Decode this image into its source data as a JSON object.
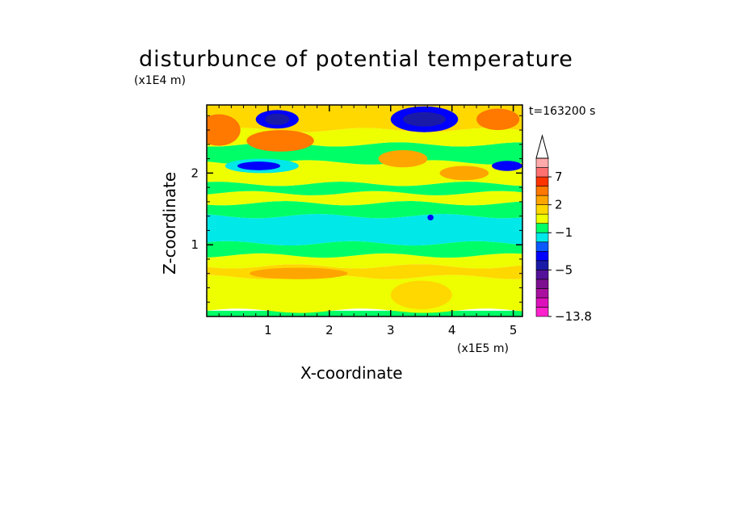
{
  "chart_data": {
    "type": "heatmap",
    "title": "disturbunce of potential temperature",
    "xlabel": "X-coordinate",
    "ylabel": "Z-coordinate",
    "x_scale_label": "(x1E5 m)",
    "y_scale_label": "(x1E4 m)",
    "time_label": "t=163200 s",
    "xlim": [
      0,
      5.15
    ],
    "ylim": [
      0,
      2.95
    ],
    "x_ticks": [
      1,
      2,
      3,
      4,
      5
    ],
    "y_ticks": [
      1,
      2
    ],
    "colorbar": {
      "tick_labels": [
        "7",
        "2",
        "−1",
        "−5",
        "−13.8"
      ],
      "tick_values": [
        7,
        2,
        -1,
        -5,
        -13.8
      ],
      "levels": [
        -13.8,
        -12,
        -10,
        -8,
        -6,
        -5,
        -4,
        -3,
        -2,
        -1,
        0,
        1,
        2,
        3,
        5,
        7,
        9,
        12
      ],
      "colors": [
        "#ff22cc",
        "#dd11bb",
        "#aa10a0",
        "#7d1090",
        "#55109a",
        "#1a1aa8",
        "#0000ff",
        "#0a5aff",
        "#00e8e8",
        "#00ff66",
        "#eeff00",
        "#ffd800",
        "#ffa500",
        "#ff7800",
        "#ff3300",
        "#ff7070",
        "#ffaaaa"
      ]
    },
    "bands": [
      {
        "z": [
          0.0,
          0.08
        ],
        "level": "#00ff66"
      },
      {
        "z": [
          0.08,
          0.55
        ],
        "level": "#eeff00"
      },
      {
        "z": [
          0.55,
          0.7
        ],
        "level": "#ffd800"
      },
      {
        "z": [
          0.7,
          0.85
        ],
        "level": "#eeff00"
      },
      {
        "z": [
          0.85,
          1.02
        ],
        "level": "#00ff66"
      },
      {
        "z": [
          1.02,
          1.4
        ],
        "level": "#00e8e8"
      },
      {
        "z": [
          1.4,
          1.58
        ],
        "level": "#00ff66"
      },
      {
        "z": [
          1.58,
          1.72
        ],
        "level": "#eeff00"
      },
      {
        "z": [
          1.72,
          1.85
        ],
        "level": "#00ff66"
      },
      {
        "z": [
          1.85,
          2.15
        ],
        "level": "#eeff00"
      },
      {
        "z": [
          2.15,
          2.4
        ],
        "level": "#00ff66"
      },
      {
        "z": [
          2.4,
          2.6
        ],
        "level": "#eeff00"
      },
      {
        "z": [
          2.6,
          2.95
        ],
        "level": "#ffd800"
      }
    ],
    "features": [
      {
        "x": 0.2,
        "z": 2.6,
        "rx": 0.35,
        "rz": 0.22,
        "color": "#ff7800"
      },
      {
        "x": 1.2,
        "z": 2.45,
        "rx": 0.55,
        "rz": 0.15,
        "color": "#ff7800"
      },
      {
        "x": 1.15,
        "z": 2.75,
        "rx": 0.35,
        "rz": 0.13,
        "color": "#0000ff"
      },
      {
        "x": 1.15,
        "z": 2.75,
        "rx": 0.2,
        "rz": 0.08,
        "color": "#1a1aa8"
      },
      {
        "x": 0.9,
        "z": 2.1,
        "rx": 0.6,
        "rz": 0.1,
        "color": "#00e8e8"
      },
      {
        "x": 0.85,
        "z": 2.1,
        "rx": 0.35,
        "rz": 0.06,
        "color": "#0000ff"
      },
      {
        "x": 3.55,
        "z": 2.75,
        "rx": 0.55,
        "rz": 0.18,
        "color": "#0000ff"
      },
      {
        "x": 3.55,
        "z": 2.75,
        "rx": 0.35,
        "rz": 0.1,
        "color": "#1a1aa8"
      },
      {
        "x": 4.75,
        "z": 2.75,
        "rx": 0.35,
        "rz": 0.15,
        "color": "#ff7800"
      },
      {
        "x": 4.9,
        "z": 2.1,
        "rx": 0.25,
        "rz": 0.07,
        "color": "#0000ff"
      },
      {
        "x": 3.2,
        "z": 2.2,
        "rx": 0.4,
        "rz": 0.12,
        "color": "#ffa500"
      },
      {
        "x": 4.2,
        "z": 2.0,
        "rx": 0.4,
        "rz": 0.1,
        "color": "#ffa500"
      },
      {
        "x": 3.65,
        "z": 1.38,
        "rx": 0.05,
        "rz": 0.04,
        "color": "#0000ff"
      },
      {
        "x": 3.5,
        "z": 0.3,
        "rx": 0.5,
        "rz": 0.2,
        "color": "#ffd800"
      },
      {
        "x": 1.5,
        "z": 0.6,
        "rx": 0.8,
        "rz": 0.08,
        "color": "#ffa500"
      }
    ]
  }
}
